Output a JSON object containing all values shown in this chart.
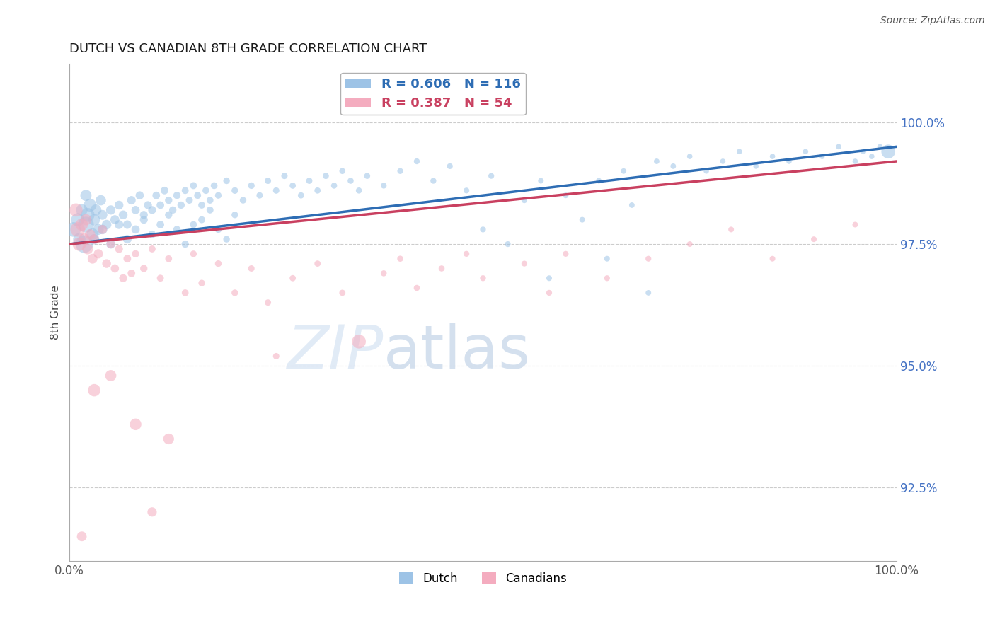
{
  "title": "DUTCH VS CANADIAN 8TH GRADE CORRELATION CHART",
  "source": "Source: ZipAtlas.com",
  "ylabel": "8th Grade",
  "watermark_zip": "ZIP",
  "watermark_atlas": "atlas",
  "xlim": [
    0.0,
    100.0
  ],
  "ylim": [
    91.0,
    101.2
  ],
  "yticks": [
    92.5,
    95.0,
    97.5,
    100.0
  ],
  "ytick_labels": [
    "92.5%",
    "95.0%",
    "97.5%",
    "100.0%"
  ],
  "xtick_labels": [
    "0.0%",
    "100.0%"
  ],
  "dutch_color": "#9dc3e6",
  "canadian_color": "#f4acbf",
  "dutch_line_color": "#2e6db4",
  "canadian_line_color": "#c94060",
  "dutch_R": 0.606,
  "dutch_N": 116,
  "canadian_R": 0.387,
  "canadian_N": 54,
  "dutch_points": [
    [
      0.5,
      97.8,
      220
    ],
    [
      1.0,
      98.0,
      180
    ],
    [
      1.2,
      97.6,
      160
    ],
    [
      1.5,
      98.2,
      140
    ],
    [
      1.8,
      97.5,
      320
    ],
    [
      2.0,
      97.9,
      260
    ],
    [
      2.2,
      98.1,
      200
    ],
    [
      2.5,
      98.3,
      170
    ],
    [
      2.8,
      97.7,
      150
    ],
    [
      3.0,
      98.0,
      140
    ],
    [
      3.2,
      98.2,
      130
    ],
    [
      3.5,
      97.8,
      120
    ],
    [
      3.8,
      98.4,
      110
    ],
    [
      4.0,
      98.1,
      100
    ],
    [
      4.5,
      97.9,
      95
    ],
    [
      5.0,
      98.2,
      90
    ],
    [
      5.5,
      98.0,
      85
    ],
    [
      6.0,
      98.3,
      80
    ],
    [
      6.5,
      98.1,
      80
    ],
    [
      7.0,
      97.9,
      75
    ],
    [
      7.5,
      98.4,
      75
    ],
    [
      8.0,
      98.2,
      70
    ],
    [
      8.5,
      98.5,
      70
    ],
    [
      9.0,
      98.1,
      65
    ],
    [
      9.5,
      98.3,
      65
    ],
    [
      10.0,
      98.2,
      65
    ],
    [
      10.5,
      98.5,
      60
    ],
    [
      11.0,
      98.3,
      60
    ],
    [
      11.5,
      98.6,
      60
    ],
    [
      12.0,
      98.4,
      55
    ],
    [
      12.5,
      98.2,
      55
    ],
    [
      13.0,
      98.5,
      55
    ],
    [
      13.5,
      98.3,
      55
    ],
    [
      14.0,
      98.6,
      50
    ],
    [
      14.5,
      98.4,
      50
    ],
    [
      15.0,
      98.7,
      50
    ],
    [
      15.5,
      98.5,
      50
    ],
    [
      16.0,
      98.3,
      50
    ],
    [
      16.5,
      98.6,
      48
    ],
    [
      17.0,
      98.4,
      48
    ],
    [
      17.5,
      98.7,
      48
    ],
    [
      18.0,
      98.5,
      45
    ],
    [
      19.0,
      98.8,
      45
    ],
    [
      20.0,
      98.6,
      45
    ],
    [
      21.0,
      98.4,
      45
    ],
    [
      22.0,
      98.7,
      45
    ],
    [
      23.0,
      98.5,
      42
    ],
    [
      24.0,
      98.8,
      42
    ],
    [
      25.0,
      98.6,
      42
    ],
    [
      26.0,
      98.9,
      42
    ],
    [
      27.0,
      98.7,
      40
    ],
    [
      28.0,
      98.5,
      40
    ],
    [
      29.0,
      98.8,
      40
    ],
    [
      30.0,
      98.6,
      40
    ],
    [
      31.0,
      98.9,
      40
    ],
    [
      32.0,
      98.7,
      38
    ],
    [
      33.0,
      99.0,
      38
    ],
    [
      34.0,
      98.8,
      38
    ],
    [
      35.0,
      98.6,
      38
    ],
    [
      36.0,
      98.9,
      38
    ],
    [
      38.0,
      98.7,
      36
    ],
    [
      40.0,
      99.0,
      36
    ],
    [
      42.0,
      99.2,
      36
    ],
    [
      44.0,
      98.8,
      36
    ],
    [
      46.0,
      99.1,
      35
    ],
    [
      48.0,
      98.6,
      35
    ],
    [
      50.0,
      97.8,
      35
    ],
    [
      51.0,
      98.9,
      35
    ],
    [
      53.0,
      97.5,
      35
    ],
    [
      55.0,
      98.4,
      35
    ],
    [
      57.0,
      98.8,
      33
    ],
    [
      58.0,
      96.8,
      33
    ],
    [
      60.0,
      98.5,
      33
    ],
    [
      62.0,
      98.0,
      33
    ],
    [
      64.0,
      98.8,
      33
    ],
    [
      65.0,
      97.2,
      33
    ],
    [
      67.0,
      99.0,
      32
    ],
    [
      68.0,
      98.3,
      32
    ],
    [
      70.0,
      96.5,
      32
    ],
    [
      71.0,
      99.2,
      32
    ],
    [
      73.0,
      99.1,
      32
    ],
    [
      75.0,
      99.3,
      30
    ],
    [
      77.0,
      99.0,
      30
    ],
    [
      79.0,
      99.2,
      30
    ],
    [
      81.0,
      99.4,
      30
    ],
    [
      83.0,
      99.1,
      30
    ],
    [
      85.0,
      99.3,
      30
    ],
    [
      87.0,
      99.2,
      30
    ],
    [
      89.0,
      99.4,
      30
    ],
    [
      91.0,
      99.3,
      30
    ],
    [
      93.0,
      99.5,
      30
    ],
    [
      95.0,
      99.2,
      30
    ],
    [
      96.0,
      99.4,
      30
    ],
    [
      97.0,
      99.3,
      30
    ],
    [
      98.0,
      99.5,
      30
    ],
    [
      99.0,
      99.4,
      200
    ],
    [
      2.0,
      98.5,
      130
    ],
    [
      3.0,
      97.6,
      110
    ],
    [
      4.0,
      97.8,
      95
    ],
    [
      5.0,
      97.5,
      85
    ],
    [
      6.0,
      97.9,
      80
    ],
    [
      7.0,
      97.6,
      75
    ],
    [
      8.0,
      97.8,
      70
    ],
    [
      9.0,
      98.0,
      65
    ],
    [
      10.0,
      97.7,
      60
    ],
    [
      11.0,
      97.9,
      60
    ],
    [
      12.0,
      98.1,
      55
    ],
    [
      13.0,
      97.8,
      55
    ],
    [
      14.0,
      97.5,
      55
    ],
    [
      15.0,
      97.9,
      50
    ],
    [
      16.0,
      98.0,
      50
    ],
    [
      17.0,
      98.2,
      50
    ],
    [
      18.0,
      97.8,
      48
    ],
    [
      19.0,
      97.6,
      45
    ],
    [
      20.0,
      98.1,
      45
    ]
  ],
  "canadian_points": [
    [
      0.8,
      98.2,
      180
    ],
    [
      1.0,
      97.8,
      220
    ],
    [
      1.2,
      97.5,
      190
    ],
    [
      1.5,
      97.9,
      160
    ],
    [
      1.8,
      97.6,
      140
    ],
    [
      2.0,
      98.0,
      130
    ],
    [
      2.2,
      97.4,
      120
    ],
    [
      2.5,
      97.7,
      110
    ],
    [
      2.8,
      97.2,
      100
    ],
    [
      3.0,
      97.6,
      95
    ],
    [
      3.5,
      97.3,
      90
    ],
    [
      4.0,
      97.8,
      85
    ],
    [
      4.5,
      97.1,
      80
    ],
    [
      5.0,
      97.5,
      75
    ],
    [
      5.5,
      97.0,
      70
    ],
    [
      6.0,
      97.4,
      65
    ],
    [
      6.5,
      96.8,
      65
    ],
    [
      7.0,
      97.2,
      60
    ],
    [
      7.5,
      96.9,
      60
    ],
    [
      8.0,
      97.3,
      55
    ],
    [
      9.0,
      97.0,
      55
    ],
    [
      10.0,
      97.4,
      50
    ],
    [
      11.0,
      96.8,
      50
    ],
    [
      12.0,
      97.2,
      48
    ],
    [
      14.0,
      96.5,
      48
    ],
    [
      15.0,
      97.3,
      45
    ],
    [
      16.0,
      96.7,
      45
    ],
    [
      18.0,
      97.1,
      45
    ],
    [
      20.0,
      96.5,
      45
    ],
    [
      22.0,
      97.0,
      42
    ],
    [
      24.0,
      96.3,
      42
    ],
    [
      25.0,
      95.2,
      42
    ],
    [
      27.0,
      96.8,
      40
    ],
    [
      30.0,
      97.1,
      40
    ],
    [
      33.0,
      96.5,
      40
    ],
    [
      35.0,
      95.5,
      200
    ],
    [
      38.0,
      96.9,
      38
    ],
    [
      40.0,
      97.2,
      38
    ],
    [
      42.0,
      96.6,
      38
    ],
    [
      45.0,
      97.0,
      38
    ],
    [
      48.0,
      97.3,
      36
    ],
    [
      50.0,
      96.8,
      36
    ],
    [
      55.0,
      97.1,
      35
    ],
    [
      58.0,
      96.5,
      35
    ],
    [
      60.0,
      97.3,
      35
    ],
    [
      65.0,
      96.8,
      35
    ],
    [
      70.0,
      97.2,
      35
    ],
    [
      75.0,
      97.5,
      33
    ],
    [
      80.0,
      97.8,
      33
    ],
    [
      85.0,
      97.2,
      33
    ],
    [
      90.0,
      97.6,
      33
    ],
    [
      95.0,
      97.9,
      33
    ],
    [
      3.0,
      94.5,
      160
    ],
    [
      8.0,
      93.8,
      140
    ],
    [
      5.0,
      94.8,
      130
    ],
    [
      12.0,
      93.5,
      120
    ],
    [
      1.5,
      91.5,
      100
    ],
    [
      10.0,
      92.0,
      90
    ]
  ]
}
